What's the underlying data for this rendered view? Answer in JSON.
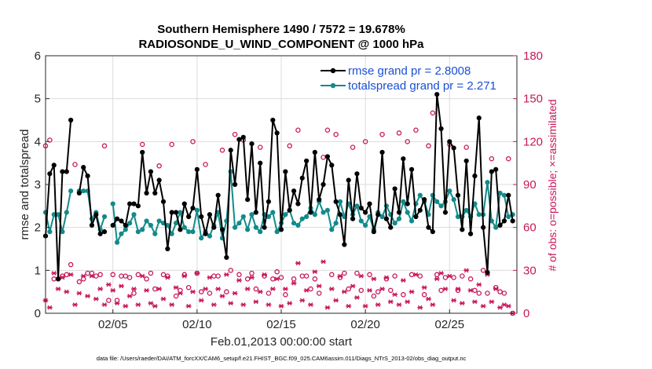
{
  "colors": {
    "rmse": "#000000",
    "spread": "#138a8a",
    "obs": "#c8175a",
    "legend_text": "#1a4fd6",
    "axis": "#262626"
  },
  "footer": "data file: /Users/raeder/DAI/ATM_forcXX/CAM6_setup/f.e21.FHIST_BGC.f09_025.CAM6assim.011/Diags_NTrS_2013-02/obs_diag_output.nc",
  "chart_data": {
    "type": "line",
    "title": [
      "Southern Hemisphere 1490 / 7572 = 19.678%",
      "RADIOSONDE_U_WIND_COMPONENT @ 1000 hPa"
    ],
    "xlabel": "Feb.01,2013 00:00:00 start",
    "ylabel": "rmse and totalspread",
    "y2label": "# of obs: o=possible; ×=assimilated",
    "xlim": [
      1,
      29
    ],
    "ylim": [
      0,
      6
    ],
    "y2lim": [
      0,
      180
    ],
    "xticks": [
      5,
      10,
      15,
      20,
      25
    ],
    "xtick_labels": [
      "02/05",
      "02/10",
      "02/15",
      "02/20",
      "02/25"
    ],
    "yticks": [
      0,
      1,
      2,
      3,
      4,
      5,
      6
    ],
    "y2ticks": [
      0,
      30,
      60,
      90,
      120,
      150,
      180
    ],
    "grid": true,
    "legend": {
      "position": "top-right",
      "entries": [
        "rmse grand pr = 2.8008",
        "totalspread grand pr = 2.271"
      ]
    },
    "x": [
      1.0,
      1.25,
      1.5,
      1.75,
      2.0,
      2.25,
      2.5,
      2.75,
      3.0,
      3.25,
      3.5,
      3.75,
      4.0,
      4.25,
      4.5,
      4.75,
      5.0,
      5.25,
      5.5,
      5.75,
      6.0,
      6.25,
      6.5,
      6.75,
      7.0,
      7.25,
      7.5,
      7.75,
      8.0,
      8.25,
      8.5,
      8.75,
      9.0,
      9.25,
      9.5,
      9.75,
      10.0,
      10.25,
      10.5,
      10.75,
      11.0,
      11.25,
      11.5,
      11.75,
      12.0,
      12.25,
      12.5,
      12.75,
      13.0,
      13.25,
      13.5,
      13.75,
      14.0,
      14.25,
      14.5,
      14.75,
      15.0,
      15.25,
      15.5,
      15.75,
      16.0,
      16.25,
      16.5,
      16.75,
      17.0,
      17.25,
      17.5,
      17.75,
      18.0,
      18.25,
      18.5,
      18.75,
      19.0,
      19.25,
      19.5,
      19.75,
      20.0,
      20.25,
      20.5,
      20.75,
      21.0,
      21.25,
      21.5,
      21.75,
      22.0,
      22.25,
      22.5,
      22.75,
      23.0,
      23.25,
      23.5,
      23.75,
      24.0,
      24.25,
      24.5,
      24.75,
      25.0,
      25.25,
      25.5,
      25.75,
      26.0,
      26.25,
      26.5,
      26.75,
      27.0,
      27.25,
      27.5,
      27.75,
      28.0,
      28.25,
      28.5,
      28.75
    ],
    "series": [
      {
        "name": "rmse",
        "values": [
          1.8,
          3.25,
          3.45,
          0.8,
          3.3,
          3.3,
          4.5,
          null,
          2.8,
          3.4,
          3.2,
          2.05,
          2.3,
          1.85,
          1.9,
          null,
          2.05,
          2.2,
          2.15,
          2.05,
          2.55,
          2.55,
          2.5,
          3.75,
          2.8,
          3.3,
          2.8,
          3.1,
          2.6,
          1.5,
          2.35,
          2.35,
          1.95,
          2.55,
          2.25,
          2.45,
          3.35,
          2.25,
          1.85,
          2.3,
          2.0,
          2.75,
          1.95,
          1.3,
          3.8,
          3.0,
          4.05,
          4.1,
          2.65,
          3.95,
          2.35,
          3.5,
          2.0,
          2.6,
          4.5,
          4.2,
          1.95,
          3.3,
          2.4,
          2.85,
          2.55,
          3.15,
          3.55,
          2.35,
          3.75,
          2.65,
          3.0,
          3.65,
          3.45,
          2.6,
          2.3,
          1.6,
          3.1,
          2.2,
          3.25,
          2.45,
          2.35,
          2.55,
          1.9,
          2.3,
          3.75,
          2.2,
          2.0,
          2.9,
          2.35,
          3.6,
          2.55,
          3.35,
          2.25,
          2.4,
          2.65,
          2.0,
          1.9,
          5.1,
          4.3,
          2.35,
          4.0,
          3.85,
          2.75,
          1.95,
          3.55,
          1.85,
          3.2,
          4.55,
          2.0,
          0.95,
          3.3,
          3.35,
          2.05,
          2.15,
          2.75,
          2.15
        ]
      },
      {
        "name": "totalspread",
        "values": [
          2.35,
          1.9,
          2.3,
          2.3,
          1.9,
          2.35,
          2.85,
          null,
          2.85,
          2.85,
          2.85,
          2.2,
          2.35,
          1.95,
          2.25,
          null,
          2.55,
          1.65,
          1.85,
          1.95,
          2.1,
          2.3,
          1.9,
          1.95,
          2.15,
          2.05,
          1.85,
          2.15,
          2.1,
          2.05,
          1.85,
          2.1,
          2.35,
          2.0,
          1.9,
          1.9,
          2.4,
          1.75,
          1.9,
          1.8,
          2.05,
          2.35,
          1.75,
          2.15,
          3.3,
          2.0,
          2.1,
          2.25,
          1.95,
          2.3,
          2.0,
          1.9,
          2.3,
          2.25,
          2.35,
          1.9,
          2.1,
          2.3,
          2.4,
          2.1,
          2.05,
          2.2,
          2.25,
          2.45,
          2.3,
          2.6,
          2.35,
          2.4,
          1.95,
          2.1,
          2.6,
          2.25,
          2.55,
          2.3,
          2.5,
          2.15,
          2.05,
          2.25,
          1.95,
          2.35,
          2.25,
          2.5,
          2.3,
          2.1,
          2.2,
          2.6,
          2.35,
          2.15,
          2.55,
          2.75,
          2.6,
          2.3,
          2.75,
          2.6,
          2.5,
          2.6,
          2.85,
          2.65,
          2.25,
          2.25,
          2.4,
          2.25,
          2.55,
          2.3,
          2.3,
          3.05,
          2.15,
          2.0,
          2.8,
          2.75,
          2.25,
          2.3
        ]
      },
      {
        "name": "obs_possible",
        "values": [
          117,
          121,
          24,
          24,
          26,
          27,
          34,
          104,
          22,
          24,
          28,
          28,
          26,
          27,
          117,
          9,
          27,
          9,
          26,
          26,
          25,
          14,
          27,
          118,
          24,
          28,
          17,
          103,
          27,
          26,
          118,
          12,
          16,
          27,
          18,
          120,
          28,
          15,
          104,
          14,
          26,
          26,
          114,
          15,
          30,
          125,
          27,
          121,
          24,
          28,
          17,
          116,
          26,
          14,
          24,
          29,
          25,
          13,
          117,
          24,
          128,
          26,
          26,
          17,
          24,
          14,
          109,
          128,
          27,
          125,
          25,
          28,
          17,
          116,
          28,
          16,
          120,
          27,
          12,
          15,
          125,
          24,
          16,
          26,
          126,
          13,
          120,
          27,
          128,
          26,
          13,
          117,
          140,
          27,
          16,
          25,
          118,
          25,
          16,
          26,
          116,
          24,
          16,
          14,
          30,
          14,
          108,
          18,
          15,
          14,
          108,
          0
        ],
        "marker": "o"
      },
      {
        "name": "obs_assimilated",
        "values": [
          9,
          4,
          28,
          17,
          25,
          15,
          27,
          6,
          14,
          26,
          12,
          26,
          10,
          17,
          6,
          20,
          16,
          7,
          19,
          5,
          12,
          17,
          6,
          26,
          16,
          7,
          5,
          17,
          10,
          25,
          6,
          18,
          14,
          26,
          5,
          15,
          28,
          9,
          17,
          25,
          6,
          17,
          12,
          27,
          7,
          14,
          23,
          6,
          17,
          25,
          8,
          15,
          27,
          6,
          17,
          24,
          5,
          17,
          7,
          21,
          35,
          9,
          16,
          6,
          29,
          19,
          36,
          4,
          17,
          9,
          26,
          15,
          5,
          19,
          11,
          26,
          5,
          16,
          24,
          6,
          17,
          25,
          8,
          13,
          6,
          23,
          8,
          15,
          27,
          4,
          18,
          10,
          6,
          24,
          28,
          17,
          26,
          9,
          17,
          7,
          30,
          16,
          8,
          20,
          5,
          27,
          8,
          17,
          4,
          6,
          5,
          0
        ],
        "marker": "*"
      }
    ]
  }
}
